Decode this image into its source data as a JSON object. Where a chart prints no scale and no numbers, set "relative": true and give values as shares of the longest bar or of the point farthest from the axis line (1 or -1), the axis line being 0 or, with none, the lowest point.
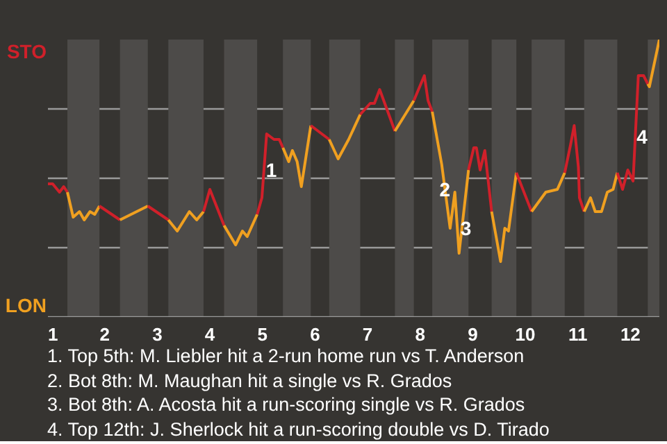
{
  "chart_data": {
    "type": "line",
    "relative": true,
    "xlim": [
      0.92,
      12.55
    ],
    "xticks": [
      1,
      2,
      3,
      4,
      5,
      6,
      7,
      8,
      9,
      10,
      11,
      12
    ],
    "grid": "y",
    "marker": "none",
    "line_style": "solid",
    "series": [
      {
        "name": "STO",
        "color": "#d0202a",
        "x": [
          0.92,
          1.01,
          1.14,
          1.22,
          1.29
        ],
        "values": [
          0.48,
          0.48,
          0.45,
          0.47,
          0.45
        ]
      },
      {
        "name": "LON",
        "color": "#f0a020",
        "x": [
          1.29,
          1.4,
          1.52,
          1.61,
          1.72,
          1.81,
          1.9
        ],
        "values": [
          0.45,
          0.36,
          0.38,
          0.35,
          0.38,
          0.37,
          0.4
        ]
      },
      {
        "color": "#d0202a",
        "x": [
          1.9,
          2.29
        ],
        "values": [
          0.4,
          0.35
        ]
      },
      {
        "color": "#f0a020",
        "x": [
          2.29,
          2.82
        ],
        "values": [
          0.35,
          0.4
        ]
      },
      {
        "color": "#d0202a",
        "x": [
          2.82,
          3.21
        ],
        "values": [
          0.4,
          0.35
        ]
      },
      {
        "color": "#f0a020",
        "x": [
          3.21,
          3.38,
          3.61,
          3.75,
          3.88
        ],
        "values": [
          0.35,
          0.31,
          0.38,
          0.35,
          0.38
        ]
      },
      {
        "color": "#d0202a",
        "x": [
          3.88,
          4.0,
          4.27
        ],
        "values": [
          0.38,
          0.46,
          0.33
        ]
      },
      {
        "color": "#f0a020",
        "x": [
          4.27,
          4.49,
          4.62,
          4.71,
          4.9
        ],
        "values": [
          0.33,
          0.26,
          0.31,
          0.29,
          0.37
        ]
      },
      {
        "color": "#d0202a",
        "x": [
          4.9,
          4.99,
          5.08,
          5.22,
          5.32,
          5.39
        ],
        "values": [
          0.37,
          0.43,
          0.66,
          0.64,
          0.64,
          0.61
        ]
      },
      {
        "color": "#f0a020",
        "x": [
          5.39,
          5.5,
          5.57,
          5.66,
          5.74,
          5.92
        ],
        "values": [
          0.61,
          0.56,
          0.6,
          0.56,
          0.47,
          0.69
        ]
      },
      {
        "color": "#d0202a",
        "x": [
          5.92,
          6.27
        ],
        "values": [
          0.69,
          0.64
        ]
      },
      {
        "color": "#f0a020",
        "x": [
          6.27,
          6.44,
          6.64,
          6.86
        ],
        "values": [
          0.64,
          0.57,
          0.64,
          0.73
        ]
      },
      {
        "color": "#d0202a",
        "x": [
          6.86,
          7.05,
          7.13,
          7.23,
          7.52
        ],
        "values": [
          0.73,
          0.77,
          0.77,
          0.82,
          0.67
        ]
      },
      {
        "color": "#f0a020",
        "x": [
          7.52,
          7.88
        ],
        "values": [
          0.67,
          0.78
        ]
      },
      {
        "color": "#d0202a",
        "x": [
          7.88,
          8.08,
          8.15,
          8.23
        ],
        "values": [
          0.78,
          0.87,
          0.78,
          0.74
        ]
      },
      {
        "color": "#f0a020",
        "x": [
          8.23,
          8.41,
          8.57,
          8.66,
          8.74,
          8.92
        ],
        "values": [
          0.74,
          0.55,
          0.32,
          0.45,
          0.23,
          0.53
        ]
      },
      {
        "color": "#d0202a",
        "x": [
          8.92,
          9.02,
          9.07,
          9.14,
          9.23,
          9.36
        ],
        "values": [
          0.53,
          0.61,
          0.61,
          0.53,
          0.6,
          0.38
        ]
      },
      {
        "color": "#f0a020",
        "x": [
          9.36,
          9.53,
          9.61,
          9.68,
          9.83
        ],
        "values": [
          0.38,
          0.2,
          0.32,
          0.31,
          0.52
        ]
      },
      {
        "color": "#d0202a",
        "x": [
          9.83,
          10.12
        ],
        "values": [
          0.52,
          0.38
        ]
      },
      {
        "color": "#f0a020",
        "x": [
          10.12,
          10.39,
          10.61,
          10.75
        ],
        "values": [
          0.38,
          0.45,
          0.46,
          0.52
        ]
      },
      {
        "color": "#d0202a",
        "x": [
          10.75,
          10.86,
          10.93,
          11.01,
          11.03,
          11.12
        ],
        "values": [
          0.52,
          0.62,
          0.69,
          0.54,
          0.43,
          0.38
        ]
      },
      {
        "color": "#f0a020",
        "x": [
          11.12,
          11.24,
          11.33,
          11.45,
          11.56,
          11.67,
          11.75
        ],
        "values": [
          0.38,
          0.43,
          0.38,
          0.38,
          0.45,
          0.46,
          0.52
        ]
      },
      {
        "color": "#d0202a",
        "x": [
          11.75,
          11.85,
          11.95,
          12.05,
          12.15,
          12.25,
          12.33
        ],
        "values": [
          0.52,
          0.46,
          0.53,
          0.49,
          0.87,
          0.87,
          0.84
        ]
      },
      {
        "color": "#f0a020",
        "x": [
          12.33,
          12.36,
          12.55
        ],
        "values": [
          0.84,
          0.83,
          1.0
        ]
      }
    ],
    "bands": [
      {
        "axis": "x",
        "from": 1.29,
        "to": 1.9,
        "color": "#4d4b49"
      },
      {
        "axis": "x",
        "from": 2.29,
        "to": 2.82,
        "color": "#4d4b49"
      },
      {
        "axis": "x",
        "from": 3.21,
        "to": 3.88,
        "color": "#4d4b49"
      },
      {
        "axis": "x",
        "from": 4.27,
        "to": 4.9,
        "color": "#4d4b49"
      },
      {
        "axis": "x",
        "from": 5.39,
        "to": 5.92,
        "color": "#4d4b49"
      },
      {
        "axis": "x",
        "from": 6.27,
        "to": 6.86,
        "color": "#4d4b49"
      },
      {
        "axis": "x",
        "from": 7.52,
        "to": 7.88,
        "color": "#4d4b49"
      },
      {
        "axis": "x",
        "from": 8.23,
        "to": 8.92,
        "color": "#4d4b49"
      },
      {
        "axis": "x",
        "from": 9.36,
        "to": 9.83,
        "color": "#4d4b49"
      },
      {
        "axis": "x",
        "from": 10.12,
        "to": 10.75,
        "color": "#4d4b49"
      },
      {
        "axis": "x",
        "from": 11.12,
        "to": 11.75,
        "color": "#4d4b49"
      },
      {
        "axis": "x",
        "from": 12.33,
        "to": 12.55,
        "color": "#4d4b49"
      }
    ],
    "annotations": [
      {
        "text": "1",
        "x": 5.17,
        "y": 0.53
      },
      {
        "text": "2",
        "x": 8.47,
        "y": 0.46
      },
      {
        "text": "3",
        "x": 8.87,
        "y": 0.32
      },
      {
        "text": "4",
        "x": 12.22,
        "y": 0.65
      },
      "1. Top 5th: M. Liebler hit a 2-run home run vs T. Anderson",
      "2. Bot 8th: M. Maughan hit a single vs R. Grados",
      "3. Bot 8th: A. Acosta hit a run-scoring single vs R. Grados",
      "4. Top 12th: J. Sherlock hit a run-scoring double vs D. Tirado"
    ]
  }
}
